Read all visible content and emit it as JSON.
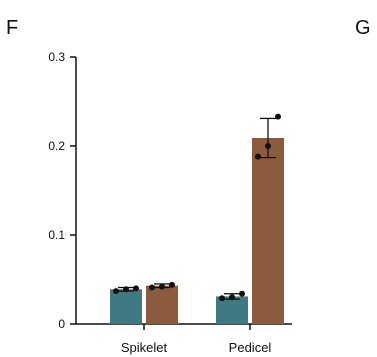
{
  "panels": {
    "left": "F",
    "right": "G"
  },
  "chart_data": {
    "type": "bar",
    "title": "",
    "xlabel": "",
    "ylabel": "",
    "ylim": [
      0,
      0.3
    ],
    "yticks": [
      0,
      0.1,
      0.2,
      0.3
    ],
    "ytick_labels": [
      "0",
      "0.1",
      "0.2",
      "0.3"
    ],
    "categories": [
      "Spikelet",
      "Pedicel"
    ],
    "series": [
      {
        "color": "#3f7a82",
        "values": [
          0.039,
          0.031
        ],
        "error": [
          0.002,
          0.003
        ],
        "points": [
          [
            0.037,
            0.039,
            0.04
          ],
          [
            0.029,
            0.03,
            0.034
          ]
        ]
      },
      {
        "color": "#8c5a3c",
        "values": [
          0.043,
          0.209
        ],
        "error": [
          0.002,
          0.022
        ],
        "points": [
          [
            0.041,
            0.042,
            0.044
          ],
          [
            0.188,
            0.2,
            0.233
          ]
        ]
      }
    ],
    "grid": false,
    "legend": "none"
  }
}
